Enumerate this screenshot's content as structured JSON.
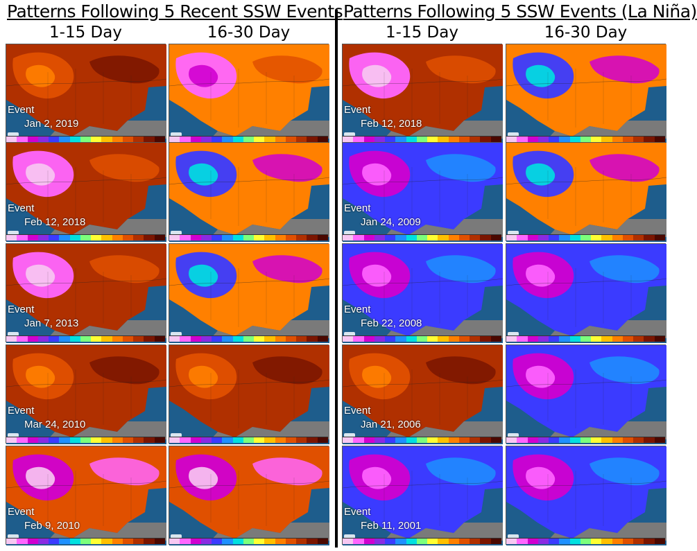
{
  "left_panel": {
    "title": "Patterns Following 5 Recent SSW Events",
    "columns": [
      "1-15 Day",
      "16-30 Day"
    ],
    "rows": [
      {
        "event_label": "Event",
        "date": "Jan 2, 2019",
        "palette": [
          "warm",
          "cold-north"
        ]
      },
      {
        "event_label": "Event",
        "date": "Feb 12, 2018",
        "palette": [
          "cold-west",
          "mixed"
        ]
      },
      {
        "event_label": "Event",
        "date": "Jan 7, 2013",
        "palette": [
          "cold-west",
          "mixed"
        ]
      },
      {
        "event_label": "Event",
        "date": "Mar 24, 2010",
        "palette": [
          "warm",
          "warm"
        ]
      },
      {
        "event_label": "Event",
        "date": "Feb 9, 2010",
        "palette": [
          "cold-south",
          "cold-south"
        ]
      }
    ]
  },
  "right_panel": {
    "title": "Patterns Following 5 SSW Events (La Niña)",
    "columns": [
      "1-15 Day",
      "16-30 Day"
    ],
    "rows": [
      {
        "event_label": "Event",
        "date": "Feb 12, 2018",
        "palette": [
          "cold-west",
          "mixed"
        ]
      },
      {
        "event_label": "Event",
        "date": "Jan 24, 2009",
        "palette": [
          "cold",
          "mixed"
        ]
      },
      {
        "event_label": "Event",
        "date": "Feb 22, 2008",
        "palette": [
          "cold",
          "cold"
        ]
      },
      {
        "event_label": "Event",
        "date": "Jan 21, 2006",
        "palette": [
          "warm",
          "cold"
        ]
      },
      {
        "event_label": "Event",
        "date": "Feb 11, 2001",
        "palette": [
          "cold",
          "cold"
        ]
      }
    ]
  },
  "colors": {
    "ocean": "#1e5d8c",
    "land_outside": "#7a7a7a",
    "colorbar": [
      "#f7c8f2",
      "#ff66ff",
      "#d000d0",
      "#8a2be2",
      "#3b3bff",
      "#1e90ff",
      "#00e0e0",
      "#7cff7c",
      "#ffff33",
      "#ffc000",
      "#ff8000",
      "#e05000",
      "#b03000",
      "#7a1500",
      "#4a0800"
    ]
  }
}
